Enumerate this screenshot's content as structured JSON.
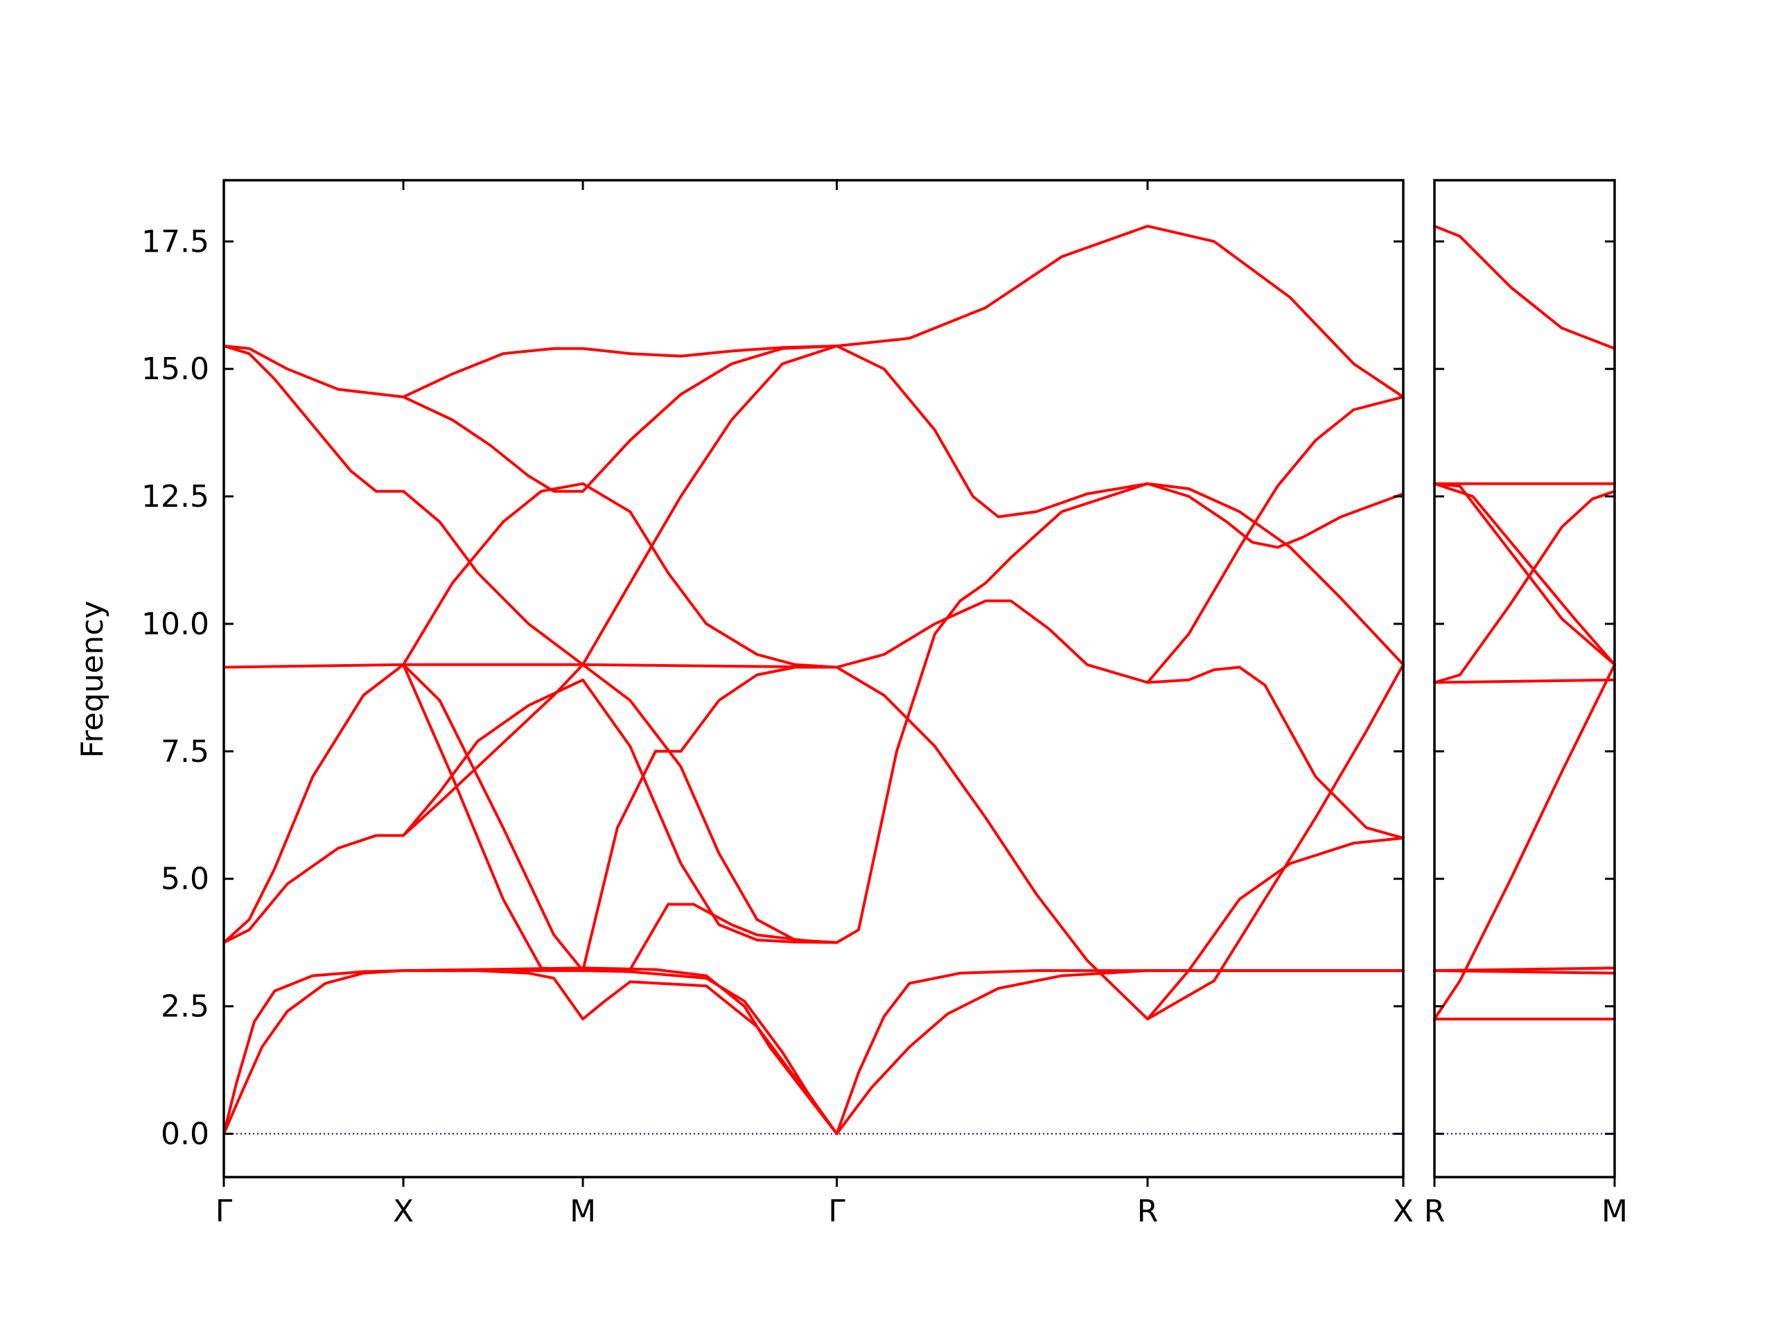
{
  "chart_data": {
    "type": "line",
    "title": "",
    "ylabel": "Frequency",
    "ylim": [
      -0.85,
      18.7
    ],
    "yticks": [
      "0.0",
      "2.5",
      "5.0",
      "7.5",
      "10.0",
      "12.5",
      "15.0",
      "17.5"
    ],
    "band_color": "#ff0000",
    "zero_line_color": "#00008b",
    "panels": [
      {
        "name": "main",
        "x_range": [
          0,
          4.645
        ],
        "ticks": [
          {
            "x": 0.0,
            "label": "Γ"
          },
          {
            "x": 0.707,
            "label": "X"
          },
          {
            "x": 1.414,
            "label": "M"
          },
          {
            "x": 2.414,
            "label": "Γ"
          },
          {
            "x": 3.638,
            "label": "R"
          },
          {
            "x": 4.645,
            "label": "X"
          }
        ],
        "bands": [
          {
            "x": [
              0,
              0.05,
              0.12,
              0.2,
              0.35,
              0.55,
              0.707,
              1.0,
              1.2,
              1.3,
              1.414,
              1.5,
              1.6,
              1.9,
              2.1,
              2.25,
              2.414
            ],
            "y": [
              0,
              1.0,
              2.2,
              2.8,
              3.1,
              3.18,
              3.2,
              3.2,
              3.15,
              3.05,
              2.25,
              2.6,
              2.98,
              2.9,
              2.1,
              1.1,
              0
            ]
          },
          {
            "x": [
              0,
              0.07,
              0.15,
              0.25,
              0.4,
              0.55,
              0.707,
              1.0,
              1.2,
              1.414,
              1.6,
              1.9,
              2.05,
              2.2,
              2.3,
              2.414
            ],
            "y": [
              0,
              0.8,
              1.7,
              2.4,
              2.95,
              3.15,
              3.2,
              3.2,
              3.2,
              3.2,
              3.18,
              3.05,
              2.6,
              1.6,
              0.8,
              0
            ]
          },
          {
            "x": [
              0.707,
              1.0,
              1.414,
              1.7,
              1.9,
              2.05,
              2.15,
              2.414
            ],
            "y": [
              3.2,
              3.22,
              3.25,
              3.22,
              3.1,
              2.5,
              1.7,
              0
            ]
          },
          {
            "x": [
              2.414,
              2.5,
              2.6,
              2.7,
              2.9,
              3.2,
              3.638,
              4.0,
              4.645
            ],
            "y": [
              0,
              1.2,
              2.3,
              2.95,
              3.15,
              3.2,
              3.2,
              3.2,
              3.2
            ]
          },
          {
            "x": [
              2.414,
              2.55,
              2.7,
              2.85,
              3.05,
              3.3,
              3.638,
              4.0,
              4.645
            ],
            "y": [
              0,
              0.9,
              1.7,
              2.35,
              2.85,
              3.1,
              3.2,
              3.2,
              3.2
            ]
          },
          {
            "x": [
              0,
              0.707,
              1.414,
              2.414
            ],
            "y": [
              9.15,
              9.2,
              9.2,
              9.15
            ]
          },
          {
            "x": [
              0,
              0.1,
              0.25,
              0.45,
              0.6,
              0.707,
              0.85,
              1.0,
              1.15,
              1.3,
              1.414
            ],
            "y": [
              3.75,
              4.0,
              4.9,
              5.6,
              5.85,
              5.85,
              6.5,
              7.2,
              7.9,
              8.6,
              9.2
            ]
          },
          {
            "x": [
              0,
              0.1,
              0.2,
              0.35,
              0.55,
              0.707,
              0.85,
              1.1,
              1.3,
              1.414,
              1.6,
              1.75,
              1.85,
              2.0,
              2.1,
              2.3,
              2.414
            ],
            "y": [
              3.75,
              4.2,
              5.2,
              7.0,
              8.6,
              9.2,
              8.5,
              6.0,
              3.9,
              3.2,
              3.22,
              4.5,
              4.5,
              4.1,
              3.9,
              3.78,
              3.75
            ]
          },
          {
            "x": [
              0.707,
              0.9,
              1.1,
              1.25,
              1.414,
              1.55,
              1.7,
              1.8,
              1.95,
              2.1,
              2.25,
              2.414
            ],
            "y": [
              9.2,
              7.0,
              4.6,
              3.25,
              3.2,
              6.0,
              7.5,
              7.5,
              8.5,
              9.0,
              9.15,
              9.15
            ]
          },
          {
            "x": [
              0.707,
              0.85,
              1.0,
              1.2,
              1.414,
              1.6,
              1.8,
              1.95,
              2.1,
              2.25,
              2.414
            ],
            "y": [
              5.85,
              6.7,
              7.7,
              8.4,
              8.9,
              7.6,
              5.3,
              4.1,
              3.8,
              3.76,
              3.75
            ]
          },
          {
            "x": [
              1.414,
              1.6,
              1.8,
              1.95,
              2.1,
              2.25,
              2.414
            ],
            "y": [
              9.2,
              8.5,
              7.2,
              5.5,
              4.2,
              3.8,
              3.75
            ]
          },
          {
            "x": [
              0.707,
              0.9,
              1.1,
              1.25,
              1.414,
              1.6,
              1.75,
              1.9,
              2.1,
              2.25,
              2.414
            ],
            "y": [
              9.2,
              10.8,
              12.0,
              12.6,
              12.75,
              12.2,
              11.0,
              10.0,
              9.4,
              9.2,
              9.15
            ]
          },
          {
            "x": [
              1.414,
              1.6,
              1.8,
              2.0,
              2.2,
              2.414
            ],
            "y": [
              9.2,
              10.8,
              12.5,
              14.0,
              15.1,
              15.45
            ]
          },
          {
            "x": [
              0,
              0.1,
              0.25,
              0.45,
              0.707,
              0.9,
              1.05,
              1.2,
              1.3,
              1.414,
              1.6,
              1.8,
              2.0,
              2.2,
              2.414
            ],
            "y": [
              15.45,
              15.4,
              15.0,
              14.6,
              14.45,
              14.0,
              13.5,
              12.9,
              12.6,
              12.6,
              13.6,
              14.5,
              15.1,
              15.4,
              15.45
            ]
          },
          {
            "x": [
              0,
              0.1,
              0.2,
              0.35,
              0.5,
              0.6,
              0.707,
              0.85,
              1.0,
              1.2,
              1.414
            ],
            "y": [
              15.45,
              15.3,
              14.8,
              13.9,
              13.0,
              12.6,
              12.6,
              12.0,
              11.0,
              10.0,
              9.2
            ]
          },
          {
            "x": [
              0.707,
              0.9,
              1.1,
              1.3,
              1.414,
              1.6,
              1.8,
              2.0,
              2.2,
              2.414,
              2.7,
              3.0,
              3.3,
              3.638,
              3.9,
              4.2,
              4.45,
              4.645
            ],
            "y": [
              14.45,
              14.9,
              15.3,
              15.4,
              15.4,
              15.3,
              15.25,
              15.35,
              15.42,
              15.45,
              15.6,
              16.2,
              17.2,
              17.8,
              17.5,
              16.4,
              15.1,
              14.45
            ]
          },
          {
            "x": [
              2.414,
              2.6,
              2.8,
              2.95,
              3.05,
              3.2,
              3.4,
              3.638,
              3.8,
              3.95,
              4.05,
              4.15,
              4.25,
              4.4,
              4.645
            ],
            "y": [
              15.45,
              15.0,
              13.8,
              12.5,
              12.1,
              12.2,
              12.55,
              12.75,
              12.5,
              12.0,
              11.6,
              11.5,
              11.7,
              12.1,
              12.55
            ]
          },
          {
            "x": [
              2.414,
              2.6,
              2.8,
              3.0,
              3.1,
              3.25,
              3.4,
              3.638,
              3.8,
              3.9,
              4.0,
              4.1,
              4.3,
              4.5,
              4.645
            ],
            "y": [
              9.15,
              9.4,
              10.0,
              10.45,
              10.45,
              9.9,
              9.2,
              8.85,
              8.9,
              9.1,
              9.15,
              8.8,
              7.0,
              6.0,
              5.8
            ]
          },
          {
            "x": [
              2.414,
              2.6,
              2.8,
              3.0,
              3.2,
              3.4,
              3.638,
              3.9,
              4.1,
              4.3,
              4.5,
              4.645
            ],
            "y": [
              9.15,
              8.6,
              7.6,
              6.2,
              4.7,
              3.4,
              2.25,
              3.0,
              4.6,
              6.2,
              7.9,
              9.2
            ]
          },
          {
            "x": [
              2.414,
              2.5,
              2.65,
              2.8,
              2.9,
              3.0,
              3.1,
              3.3,
              3.638,
              3.8,
              4.0,
              4.2,
              4.4,
              4.645
            ],
            "y": [
              3.75,
              4.0,
              7.5,
              9.8,
              10.45,
              10.8,
              11.3,
              12.2,
              12.75,
              12.65,
              12.2,
              11.5,
              10.5,
              9.2
            ]
          },
          {
            "x": [
              3.638,
              3.8,
              4.0,
              4.15,
              4.3,
              4.45,
              4.645
            ],
            "y": [
              8.85,
              9.8,
              11.5,
              12.7,
              13.6,
              14.2,
              14.45
            ]
          },
          {
            "x": [
              3.638,
              3.8,
              4.0,
              4.2,
              4.45,
              4.645
            ],
            "y": [
              2.25,
              3.2,
              4.6,
              5.3,
              5.7,
              5.8
            ]
          }
        ]
      },
      {
        "name": "side",
        "x_range": [
          0,
          0.707
        ],
        "ticks": [
          {
            "x": 0.0,
            "label": "R"
          },
          {
            "x": 0.707,
            "label": "M"
          }
        ],
        "bands": [
          {
            "x": [
              0,
              0.1,
              0.3,
              0.5,
              0.707
            ],
            "y": [
              17.8,
              17.6,
              16.6,
              15.8,
              15.4
            ]
          },
          {
            "x": [
              0,
              0.707
            ],
            "y": [
              12.75,
              12.75
            ]
          },
          {
            "x": [
              0,
              0.15,
              0.35,
              0.55,
              0.707
            ],
            "y": [
              12.75,
              12.5,
              11.3,
              10.1,
              9.2
            ]
          },
          {
            "x": [
              0,
              0.1,
              0.3,
              0.5,
              0.707
            ],
            "y": [
              12.75,
              12.7,
              11.4,
              10.1,
              9.2
            ]
          },
          {
            "x": [
              0,
              0.1,
              0.3,
              0.5,
              0.62,
              0.707
            ],
            "y": [
              8.85,
              9.0,
              10.4,
              11.9,
              12.45,
              12.6
            ]
          },
          {
            "x": [
              0,
              0.707
            ],
            "y": [
              8.85,
              8.9
            ]
          },
          {
            "x": [
              0,
              0.1,
              0.3,
              0.5,
              0.707
            ],
            "y": [
              2.25,
              3.0,
              5.0,
              7.1,
              9.2
            ]
          },
          {
            "x": [
              0,
              0.707
            ],
            "y": [
              3.2,
              3.25
            ]
          },
          {
            "x": [
              0,
              0.707
            ],
            "y": [
              3.2,
              3.15
            ]
          },
          {
            "x": [
              0,
              0.707
            ],
            "y": [
              2.25,
              2.25
            ]
          }
        ]
      }
    ]
  }
}
